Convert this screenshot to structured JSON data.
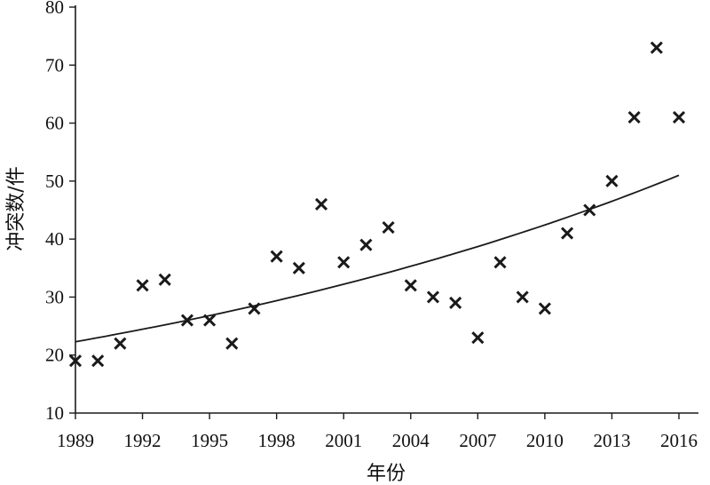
{
  "chart_data": {
    "type": "scatter",
    "title": "",
    "xlabel": "年份",
    "ylabel": "冲突数/件",
    "xlim": [
      1989,
      2016
    ],
    "ylim": [
      10,
      80
    ],
    "x_ticks": [
      "1989",
      "1992",
      "1995",
      "1998",
      "2001",
      "2004",
      "2007",
      "2010",
      "2013",
      "2016"
    ],
    "y_ticks": [
      "10",
      "20",
      "30",
      "40",
      "50",
      "60",
      "70",
      "80"
    ],
    "grid": false,
    "legend": "none",
    "marker": "x",
    "colors": {
      "marker": "#1a1a1a",
      "trend": "#1a1a1a",
      "axis": "#1a1a1a"
    },
    "series": [
      {
        "x": [
          1989,
          1990,
          1991,
          1992,
          1993,
          1994,
          1995,
          1996,
          1997,
          1998,
          1999,
          2000,
          2001,
          2002,
          2003,
          2004,
          2005,
          2006,
          2007,
          2008,
          2009,
          2010,
          2011,
          2012,
          2013,
          2014,
          2015,
          2016
        ],
        "values": [
          19,
          19,
          22,
          32,
          33,
          26,
          26,
          22,
          28,
          37,
          35,
          46,
          36,
          39,
          42,
          32,
          30,
          29,
          23,
          36,
          30,
          28,
          41,
          45,
          50,
          61,
          73,
          61
        ]
      }
    ],
    "trendline": {
      "type": "exponential",
      "from": [
        1989,
        22.3
      ],
      "to": [
        2016,
        51
      ]
    }
  }
}
